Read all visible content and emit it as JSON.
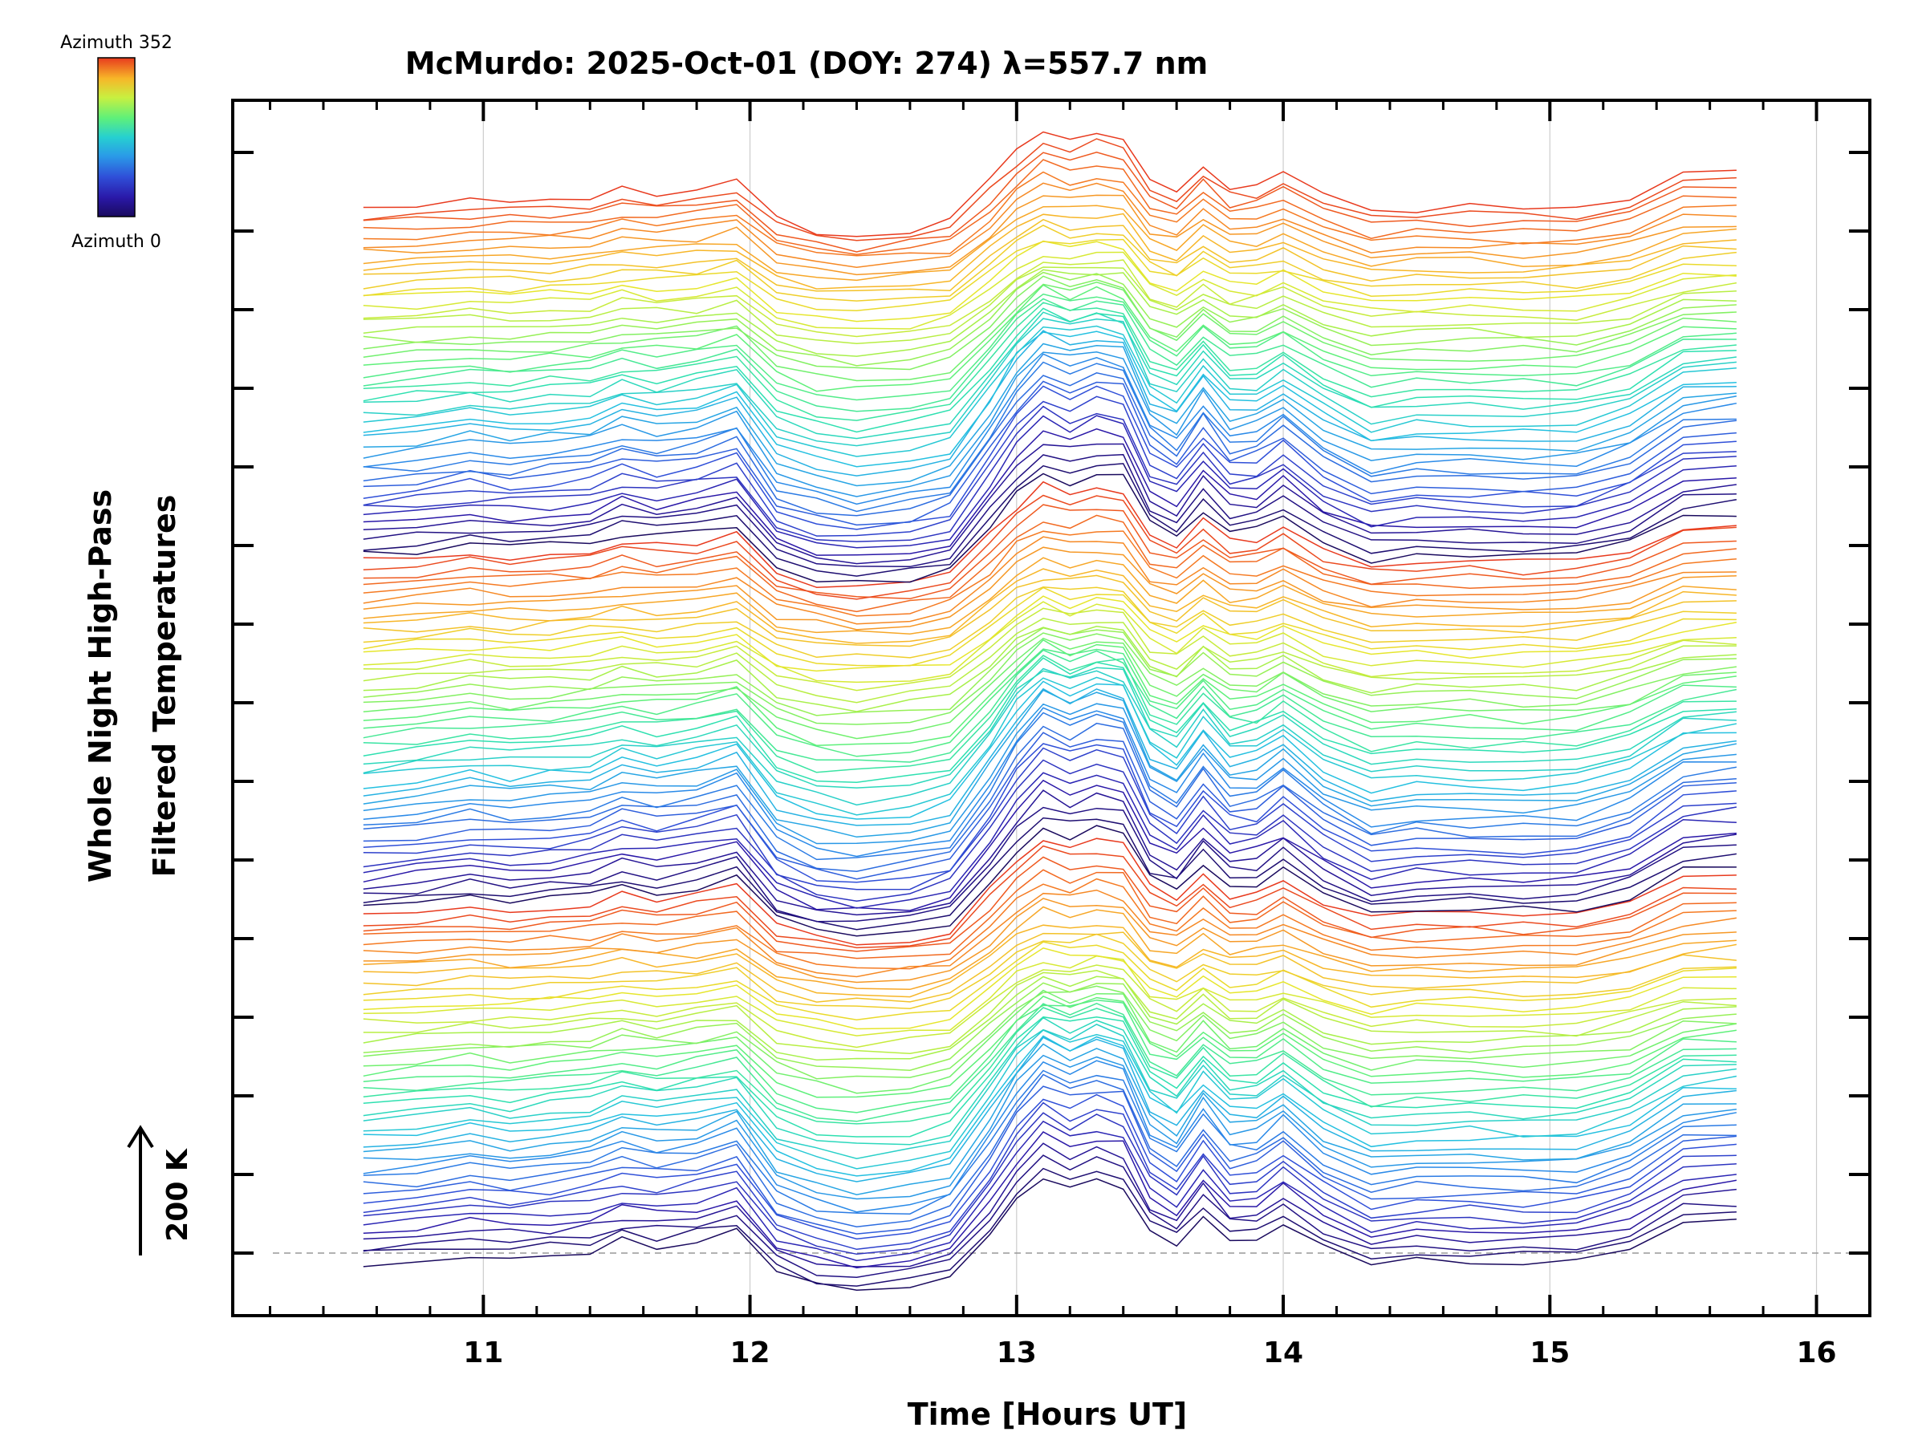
{
  "chart_data": {
    "type": "line",
    "title": "McMurdo: 2025-Oct-01 (DOY: 274) λ=557.7 nm",
    "xlabel": "Time [Hours UT]",
    "ylabel_lines": [
      "Whole Night High-Pass",
      "Filtered Temperatures"
    ],
    "scale_label": "200 K",
    "xlim": [
      10.06,
      16.2
    ],
    "x_ticks": [
      11,
      12,
      13,
      14,
      15,
      16
    ],
    "x_tick_labels": [
      "11",
      "12",
      "13",
      "14",
      "15",
      "16"
    ],
    "y_units_per_tick": 200,
    "n_y_major_ticks": 15,
    "grid": "vertical dotted at major x ticks",
    "colorbar": {
      "top_label": "Azimuth 352",
      "bottom_label": "Azimuth 0",
      "colormap": "rainbow"
    },
    "azimuth_step_deg": 8,
    "n_series": 135,
    "offset_per_series_K": 20,
    "times": [
      10.55,
      10.75,
      10.95,
      11.1,
      11.25,
      11.4,
      11.52,
      11.65,
      11.8,
      11.95,
      12.1,
      12.25,
      12.4,
      12.6,
      12.75,
      12.9,
      13.0,
      13.1,
      13.2,
      13.3,
      13.4,
      13.5,
      13.6,
      13.7,
      13.8,
      13.9,
      14.0,
      14.15,
      14.33,
      14.5,
      14.7,
      14.9,
      15.1,
      15.3,
      15.5,
      15.7
    ],
    "base_profile_K": [
      -30,
      -20,
      0,
      -10,
      0,
      10,
      40,
      25,
      40,
      70,
      -70,
      -110,
      -125,
      -110,
      -80,
      60,
      170,
      245,
      215,
      240,
      225,
      70,
      30,
      125,
      45,
      50,
      100,
      15,
      -45,
      -30,
      -30,
      -35,
      -30,
      10,
      100,
      110
    ],
    "hidden_note": ""
  },
  "colors": {
    "axis": "#000000",
    "grid": "#cccccc",
    "rainbow": [
      "#1a0a5e",
      "#2a18a8",
      "#2f4fd8",
      "#2a8ae8",
      "#24c0e0",
      "#2ee0b0",
      "#5ef07a",
      "#a8f04a",
      "#e6e62c",
      "#f7b628",
      "#f57a22",
      "#e83a1e"
    ]
  }
}
